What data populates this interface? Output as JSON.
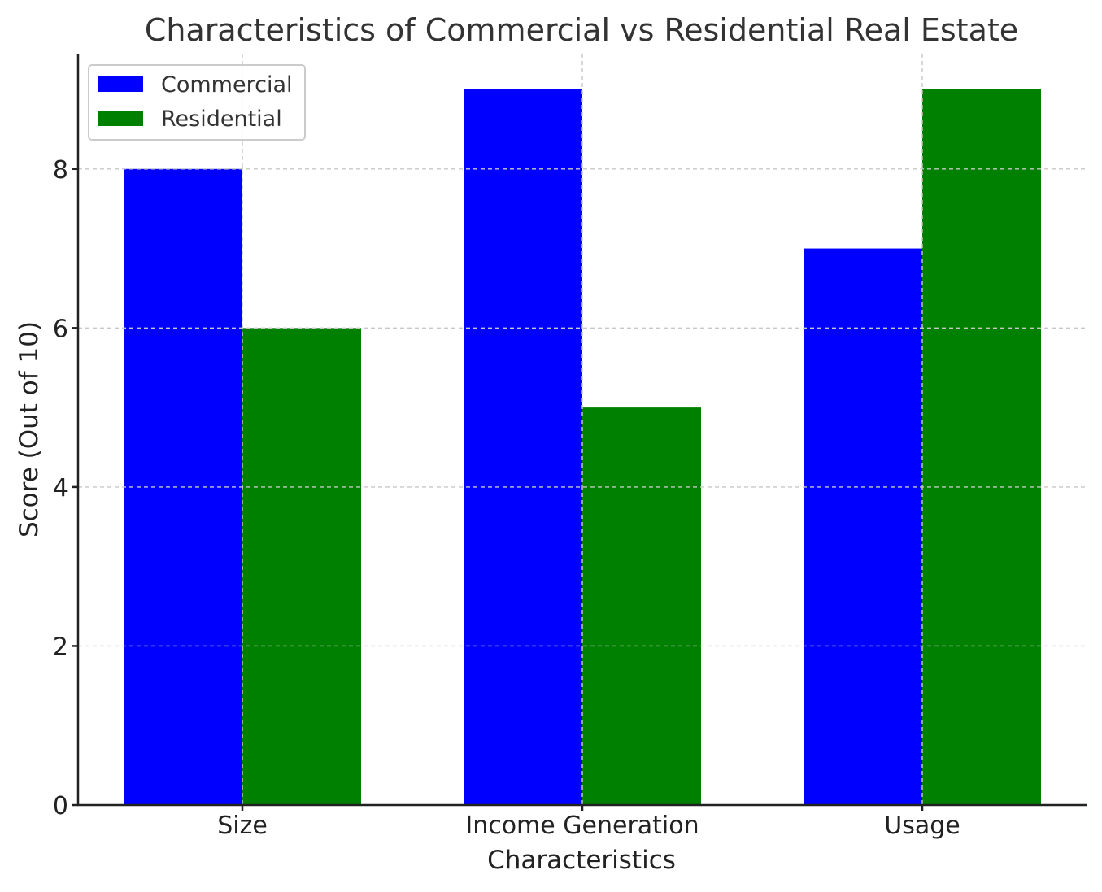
{
  "chart_data": {
    "type": "bar",
    "title": "Characteristics of Commercial vs Residential Real Estate",
    "xlabel": "Characteristics",
    "ylabel": "Score (Out of 10)",
    "categories": [
      "Size",
      "Income Generation",
      "Usage"
    ],
    "series": [
      {
        "name": "Commercial",
        "values": [
          8,
          9,
          7
        ],
        "color": "#0000ff"
      },
      {
        "name": "Residential",
        "values": [
          6,
          5,
          9
        ],
        "color": "#008000"
      }
    ],
    "ylim": [
      0,
      9.45
    ],
    "yticks": [
      0,
      2,
      4,
      6,
      8
    ],
    "grid": true,
    "legend_position": "top-left"
  }
}
